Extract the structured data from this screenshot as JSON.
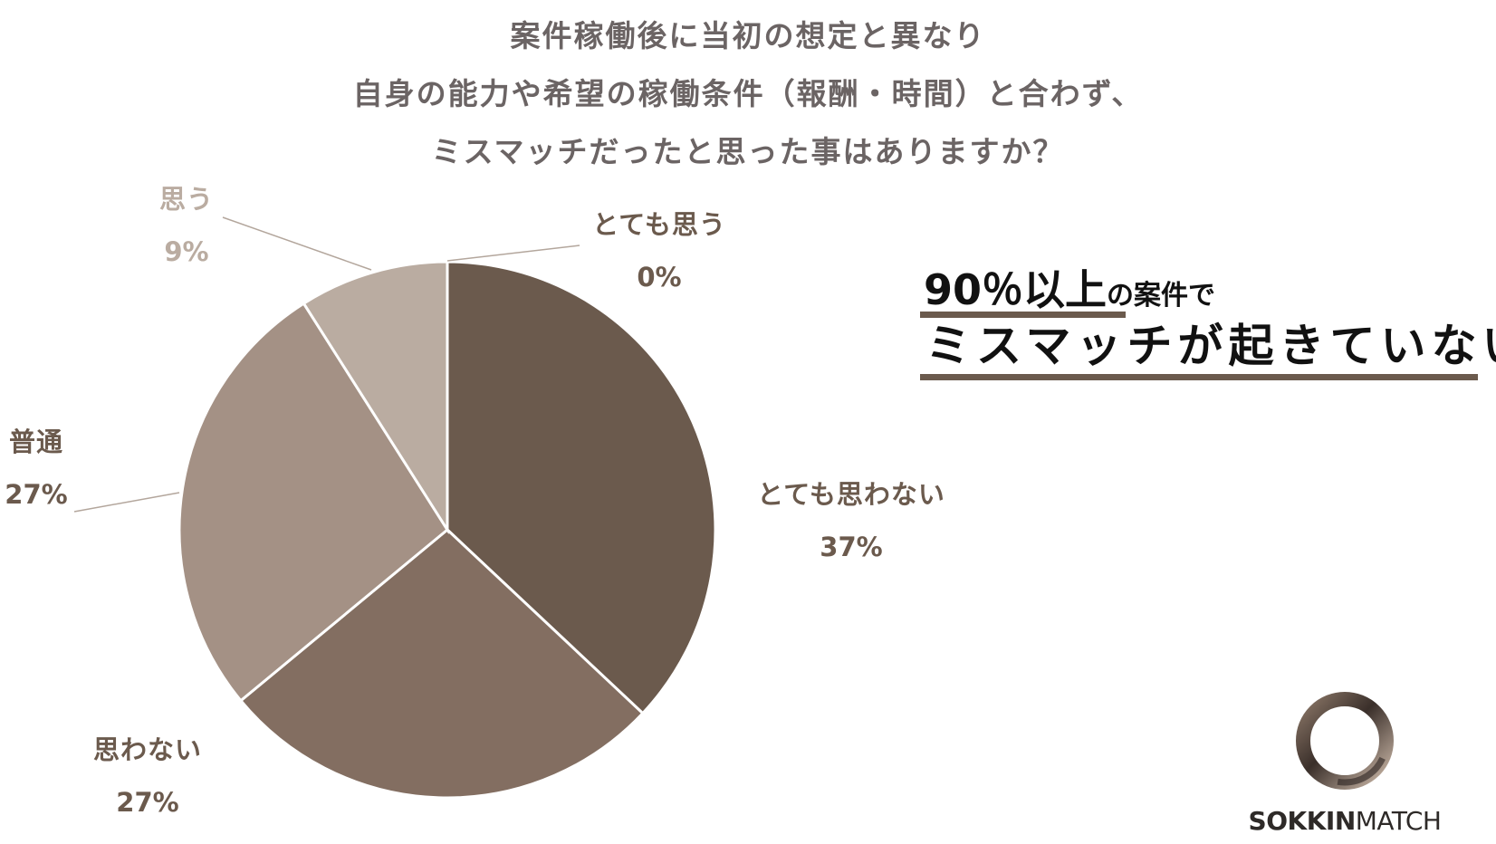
{
  "chart_data": {
    "type": "pie",
    "title_lines": [
      "案件稼働後に当初の想定と異なり",
      "自身の能力や希望の稼働条件（報酬・時間）と合わず、",
      "ミスマッチだったと思った事はありますか？"
    ],
    "start": "12 o'clock, clockwise",
    "slices": [
      {
        "label": "とても思う",
        "value": 0,
        "value_label": "0%",
        "color": "#6b5a4d",
        "label_color": "#6b5a4d"
      },
      {
        "label": "とても思わない",
        "value": 37,
        "value_label": "37%",
        "color": "#6b5a4d",
        "label_color": "#6b5a4d"
      },
      {
        "label": "思わない",
        "value": 27,
        "value_label": "27%",
        "color": "#836e61",
        "label_color": "#6b5a4d"
      },
      {
        "label": "普通",
        "value": 27,
        "value_label": "27%",
        "color": "#a49185",
        "label_color": "#6b5a4d"
      },
      {
        "label": "思う",
        "value": 9,
        "value_label": "9%",
        "color": "#baaca1",
        "label_color": "#baaca1"
      }
    ]
  },
  "callout": {
    "line1_highlight": "90％以上",
    "line1_rest": "の案件で",
    "line2": "ミスマッチが起きていない",
    "accent_color": "#6b5a4d"
  },
  "logo": {
    "bold_text": "SOKKIN",
    "light_text": "MATCH"
  }
}
